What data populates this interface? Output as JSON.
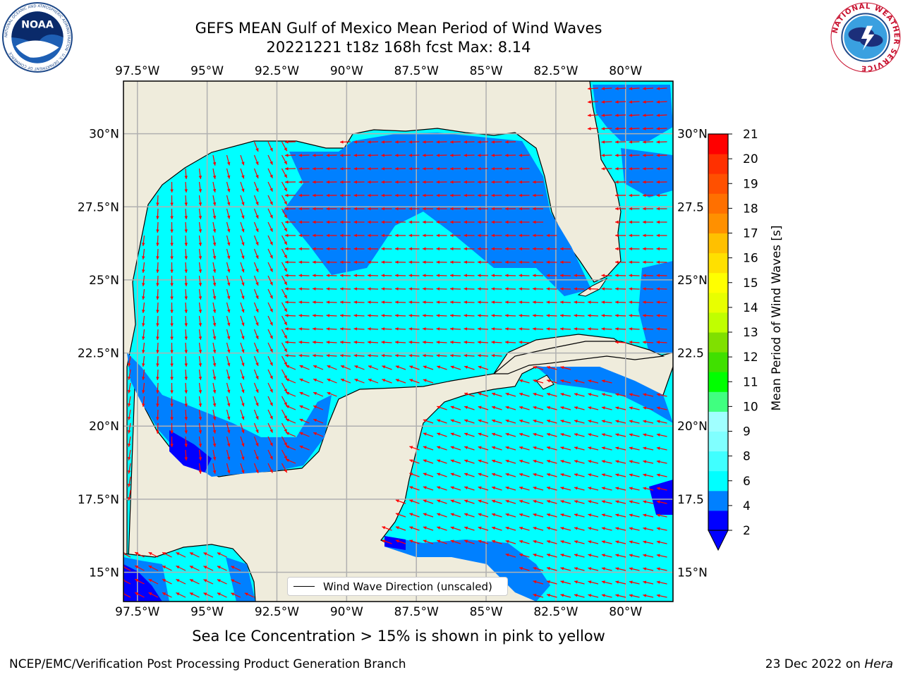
{
  "title": {
    "line1": "GEFS MEAN Gulf of Mexico Mean Period of Wind Waves",
    "line2": "20221221 t18z 168h fcst   Max: 8.14"
  },
  "logos": {
    "left": "noaa-logo",
    "right": "national-weather-service-logo",
    "noaa_text": "NOAA",
    "noaa_ring_text": "NATIONAL OCEANIC AND ATMOSPHERIC ADMINISTRATION · U.S. DEPARTMENT OF COMMERCE",
    "nws_ring_text": "NATIONAL WEATHER SERVICE"
  },
  "map": {
    "lon_range": [
      -98.0,
      -78.3
    ],
    "lat_range": [
      14.0,
      31.8
    ],
    "lon_ticks": [
      "97.5°W",
      "95°W",
      "92.5°W",
      "90°W",
      "87.5°W",
      "85°W",
      "82.5°W",
      "80°W"
    ],
    "lat_ticks_left": [
      "30°N",
      "27.5°N",
      "25°N",
      "22.5°N",
      "20°N",
      "17.5°N",
      "15°N"
    ],
    "lat_ticks_right": [
      "30°N",
      "27.5",
      "25°N",
      "22.5",
      "20°N",
      "17.5",
      "15°N"
    ],
    "land_color": "#efecdc",
    "grid": true,
    "arrow_color": "#ff0000"
  },
  "legend": {
    "label": "Wind Wave Direction (unscaled)",
    "placement": "bottom-center"
  },
  "colorbar": {
    "label": "Mean Period of Wind Waves [s]",
    "ticks": [
      "21",
      "20",
      "19",
      "18",
      "17",
      "16",
      "15",
      "14",
      "13",
      "12",
      "11",
      "10",
      "9",
      "8",
      "6",
      "4",
      "2"
    ],
    "colors": [
      "#0000ff",
      "#0080ff",
      "#00ffff",
      "#40ffff",
      "#80ffff",
      "#a0ffff",
      "#40ff80",
      "#00ff00",
      "#40e000",
      "#80e000",
      "#c0ff00",
      "#e8ff00",
      "#ffff00",
      "#ffe000",
      "#ffc000",
      "#ff9000",
      "#ff7000",
      "#ff5000",
      "#ff3000",
      "#ff0000"
    ],
    "extend": "min"
  },
  "ice_note": "Sea Ice Concentration > 15% is shown in pink to yellow",
  "footer": {
    "left": "NCEP/EMC/Verification Post Processing Product Generation Branch",
    "date": "23 Dec 2022 on ",
    "machine": "Hera"
  }
}
